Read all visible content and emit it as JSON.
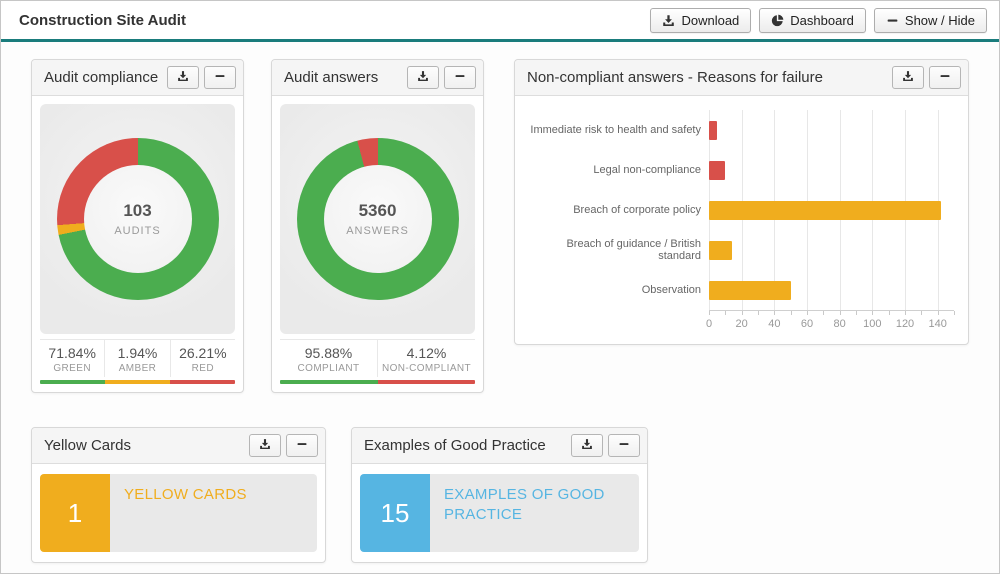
{
  "header": {
    "title": "Construction Site Audit",
    "buttons": [
      {
        "label": "Download"
      },
      {
        "label": "Dashboard"
      },
      {
        "label": "Show / Hide"
      }
    ]
  },
  "colors": {
    "teal": "#1A7C7C",
    "green": "#4BAD4F",
    "amber": "#F0AD1E",
    "red": "#D8504A",
    "blue": "#56B5E2"
  },
  "panels": {
    "audit_compliance": {
      "title": "Audit compliance",
      "center_value": "103",
      "center_label": "AUDITS",
      "legend": [
        {
          "value": "71.84%",
          "label": "GREEN"
        },
        {
          "value": "1.94%",
          "label": "AMBER"
        },
        {
          "value": "26.21%",
          "label": "RED"
        }
      ]
    },
    "audit_answers": {
      "title": "Audit answers",
      "center_value": "5360",
      "center_label": "ANSWERS",
      "legend": [
        {
          "value": "95.88%",
          "label": "COMPLIANT"
        },
        {
          "value": "4.12%",
          "label": "NON-COMPLIANT"
        }
      ]
    },
    "reasons": {
      "title": "Non-compliant answers - Reasons for failure"
    },
    "yellow_cards": {
      "title": "Yellow Cards",
      "count": "1",
      "label": "YELLOW CARDS"
    },
    "good_practice": {
      "title": "Examples of Good Practice",
      "count": "15",
      "label": "EXAMPLES OF GOOD PRACTICE"
    }
  },
  "chart_data": [
    {
      "type": "pie",
      "subtype": "donut",
      "title": "Audit compliance",
      "center_value": 103,
      "center_label": "AUDITS",
      "unit": "percent",
      "slices": [
        {
          "label": "GREEN",
          "value": 71.84,
          "color": "#4BAD4F"
        },
        {
          "label": "AMBER",
          "value": 1.94,
          "color": "#F0AD1E"
        },
        {
          "label": "RED",
          "value": 26.21,
          "color": "#D8504A"
        }
      ]
    },
    {
      "type": "pie",
      "subtype": "donut",
      "title": "Audit answers",
      "center_value": 5360,
      "center_label": "ANSWERS",
      "unit": "percent",
      "slices": [
        {
          "label": "COMPLIANT",
          "value": 95.88,
          "color": "#4BAD4F"
        },
        {
          "label": "NON-COMPLIANT",
          "value": 4.12,
          "color": "#D8504A"
        }
      ]
    },
    {
      "type": "bar",
      "orientation": "horizontal",
      "title": "Non-compliant answers - Reasons for failure",
      "categories": [
        "Immediate risk to health and safety",
        "Legal non-compliance",
        "Breach of corporate policy",
        "Breach of guidance / British standard",
        "Observation"
      ],
      "values": [
        5,
        10,
        142,
        14,
        50
      ],
      "colors": [
        "#D8504A",
        "#D8504A",
        "#F0AD1E",
        "#F0AD1E",
        "#F0AD1E"
      ],
      "xlabel": "",
      "ylabel": "",
      "xlim": [
        0,
        150
      ],
      "xticks": [
        0,
        20,
        40,
        60,
        80,
        100,
        120,
        140
      ],
      "grid": true,
      "legend": false
    }
  ]
}
